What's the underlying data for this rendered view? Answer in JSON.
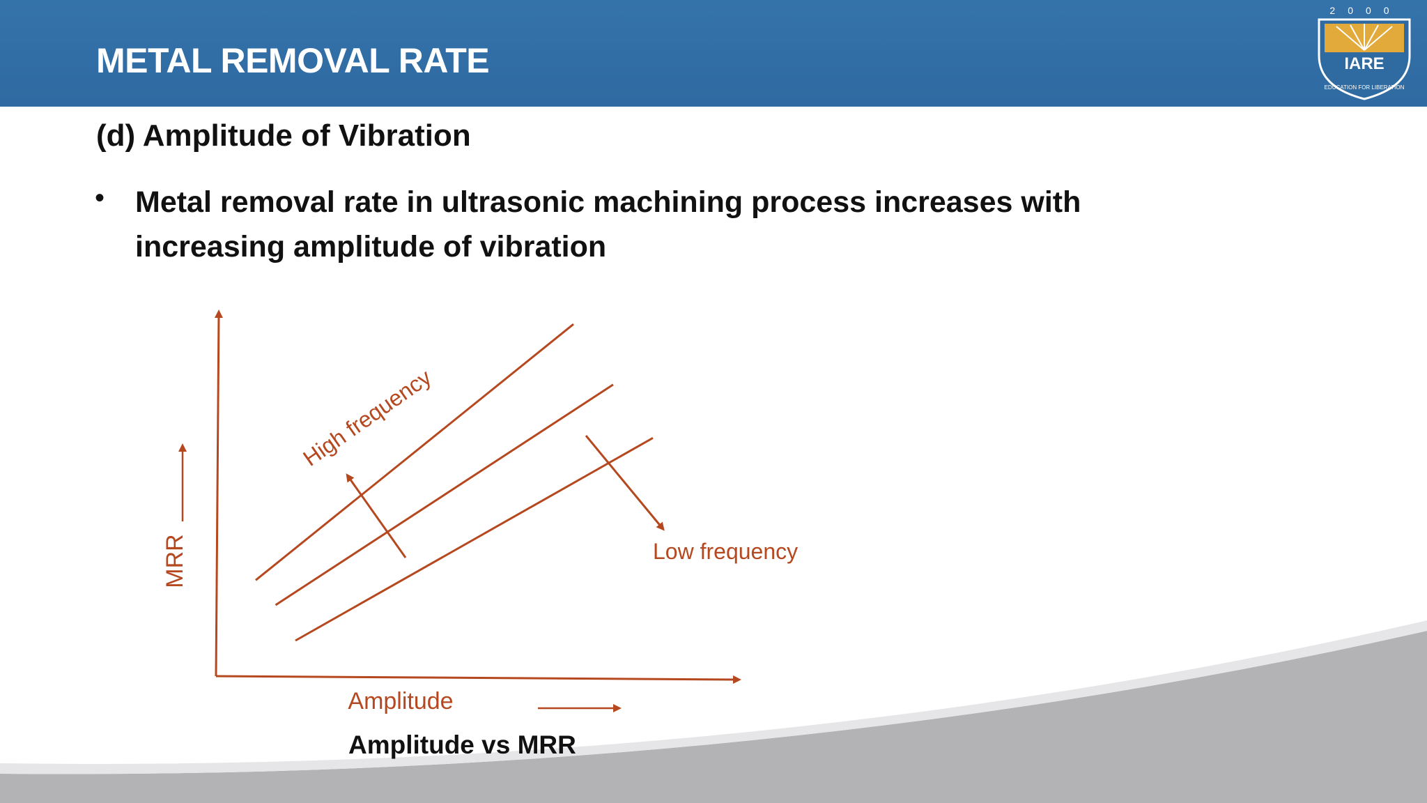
{
  "header": {
    "title": "METAL REMOVAL RATE",
    "logo": {
      "year": "2000",
      "name": "IARE",
      "tagline": "EDUCATION FOR LIBERATION"
    }
  },
  "content": {
    "subheading": "(d) Amplitude of Vibration",
    "bullet_symbol": "•",
    "bullet_text": "Metal removal rate in ultrasonic machining process increases with increasing amplitude of vibration"
  },
  "figure": {
    "caption": "Amplitude vs MRR",
    "annotation_high": "High frequency",
    "annotation_low": "Low frequency",
    "line_color": "#b5481e"
  },
  "chart_data": {
    "type": "line",
    "xlabel": "Amplitude",
    "ylabel": "MRR",
    "grid": false,
    "series": [
      {
        "x": [
          0.1,
          0.9
        ],
        "y": [
          0.27,
          0.99
        ]
      },
      {
        "x": [
          0.15,
          1.0
        ],
        "y": [
          0.2,
          0.82
        ]
      },
      {
        "x": [
          0.2,
          1.1
        ],
        "y": [
          0.1,
          0.67
        ]
      }
    ],
    "annotations": [
      "High frequency",
      "Low frequency"
    ]
  },
  "colors": {
    "header_bg": "#3473aa",
    "chart_color": "#b5481e",
    "swoosh_gray": "#b3b3b6"
  }
}
